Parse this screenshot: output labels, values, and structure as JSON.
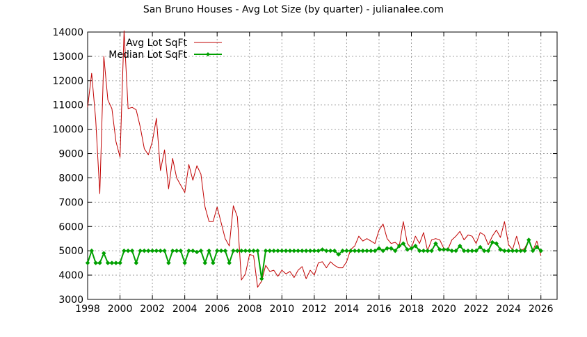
{
  "chart_data": {
    "type": "line",
    "title": "San Bruno Houses - Avg Lot Size (by quarter) - julianalee.com",
    "xlabel": "",
    "ylabel": "",
    "xlim": [
      1998,
      2027
    ],
    "ylim": [
      3000,
      14000
    ],
    "x_ticks": [
      1998,
      2000,
      2002,
      2004,
      2006,
      2008,
      2010,
      2012,
      2014,
      2016,
      2018,
      2020,
      2022,
      2024,
      2026
    ],
    "y_ticks": [
      3000,
      4000,
      5000,
      6000,
      7000,
      8000,
      9000,
      10000,
      11000,
      12000,
      13000,
      14000
    ],
    "grid": true,
    "legend_position": "top-left",
    "series": [
      {
        "name": "Avg Lot SqFt",
        "color": "#c00000",
        "marker": "none",
        "x": [
          1998.0,
          1998.25,
          1998.5,
          1998.75,
          1999.0,
          1999.25,
          1999.5,
          1999.75,
          2000.0,
          2000.25,
          2000.5,
          2000.75,
          2001.0,
          2001.25,
          2001.5,
          2001.75,
          2002.0,
          2002.25,
          2002.5,
          2002.75,
          2003.0,
          2003.25,
          2003.5,
          2003.75,
          2004.0,
          2004.25,
          2004.5,
          2004.75,
          2005.0,
          2005.25,
          2005.5,
          2005.75,
          2006.0,
          2006.25,
          2006.5,
          2006.75,
          2007.0,
          2007.25,
          2007.5,
          2007.75,
          2008.0,
          2008.25,
          2008.5,
          2008.75,
          2009.0,
          2009.25,
          2009.5,
          2009.75,
          2010.0,
          2010.25,
          2010.5,
          2010.75,
          2011.0,
          2011.25,
          2011.5,
          2011.75,
          2012.0,
          2012.25,
          2012.5,
          2012.75,
          2013.0,
          2013.25,
          2013.5,
          2013.75,
          2014.0,
          2014.25,
          2014.5,
          2014.75,
          2015.0,
          2015.25,
          2015.5,
          2015.75,
          2016.0,
          2016.25,
          2016.5,
          2016.75,
          2017.0,
          2017.25,
          2017.5,
          2017.75,
          2018.0,
          2018.25,
          2018.5,
          2018.75,
          2019.0,
          2019.25,
          2019.5,
          2019.75,
          2020.0,
          2020.25,
          2020.5,
          2020.75,
          2021.0,
          2021.25,
          2021.5,
          2021.75,
          2022.0,
          2022.25,
          2022.5,
          2022.75,
          2023.0,
          2023.25,
          2023.5,
          2023.75,
          2024.0,
          2024.25,
          2024.5,
          2024.75,
          2025.0,
          2025.25,
          2025.5,
          2025.75,
          2026.0
        ],
        "y": [
          10900,
          12300,
          10400,
          7350,
          13000,
          11200,
          10850,
          9500,
          8850,
          14050,
          10850,
          10900,
          10800,
          10100,
          9200,
          8950,
          9500,
          10450,
          8300,
          9150,
          7550,
          8800,
          8000,
          7700,
          7400,
          8550,
          7900,
          8500,
          8150,
          6800,
          6200,
          6200,
          6800,
          6150,
          5500,
          5200,
          6850,
          6400,
          3800,
          4050,
          4850,
          4800,
          3500,
          3750,
          4400,
          4150,
          4200,
          3950,
          4200,
          4050,
          4150,
          3900,
          4200,
          4350,
          3850,
          4200,
          4000,
          4500,
          4550,
          4300,
          4550,
          4400,
          4300,
          4300,
          4550,
          5050,
          5200,
          5600,
          5400,
          5500,
          5400,
          5300,
          5850,
          6100,
          5500,
          5300,
          5350,
          5200,
          6200,
          5300,
          5100,
          5600,
          5300,
          5750,
          5000,
          5450,
          5500,
          5450,
          5100,
          5050,
          5450,
          5600,
          5800,
          5450,
          5650,
          5600,
          5300,
          5750,
          5650,
          5250,
          5600,
          5850,
          5550,
          6200,
          5250,
          5050,
          5600,
          5000,
          5100,
          5450,
          5000,
          5400,
          4800
        ]
      },
      {
        "name": "Median Lot SqFt",
        "color": "#00a000",
        "marker": "diamond",
        "x": [
          1998.0,
          1998.25,
          1998.5,
          1998.75,
          1999.0,
          1999.25,
          1999.5,
          1999.75,
          2000.0,
          2000.25,
          2000.5,
          2000.75,
          2001.0,
          2001.25,
          2001.5,
          2001.75,
          2002.0,
          2002.25,
          2002.5,
          2002.75,
          2003.0,
          2003.25,
          2003.5,
          2003.75,
          2004.0,
          2004.25,
          2004.5,
          2004.75,
          2005.0,
          2005.25,
          2005.5,
          2005.75,
          2006.0,
          2006.25,
          2006.5,
          2006.75,
          2007.0,
          2007.25,
          2007.5,
          2007.75,
          2008.0,
          2008.25,
          2008.5,
          2008.75,
          2009.0,
          2009.25,
          2009.5,
          2009.75,
          2010.0,
          2010.25,
          2010.5,
          2010.75,
          2011.0,
          2011.25,
          2011.5,
          2011.75,
          2012.0,
          2012.25,
          2012.5,
          2012.75,
          2013.0,
          2013.25,
          2013.5,
          2013.75,
          2014.0,
          2014.25,
          2014.5,
          2014.75,
          2015.0,
          2015.25,
          2015.5,
          2015.75,
          2016.0,
          2016.25,
          2016.5,
          2016.75,
          2017.0,
          2017.25,
          2017.5,
          2017.75,
          2018.0,
          2018.25,
          2018.5,
          2018.75,
          2019.0,
          2019.25,
          2019.5,
          2019.75,
          2020.0,
          2020.25,
          2020.5,
          2020.75,
          2021.0,
          2021.25,
          2021.5,
          2021.75,
          2022.0,
          2022.25,
          2022.5,
          2022.75,
          2023.0,
          2023.25,
          2023.5,
          2023.75,
          2024.0,
          2024.25,
          2024.5,
          2024.75,
          2025.0,
          2025.25,
          2025.5,
          2025.75,
          2026.0
        ],
        "y": [
          4500,
          5000,
          4500,
          4500,
          4900,
          4500,
          4500,
          4500,
          4500,
          5000,
          5000,
          5000,
          4500,
          5000,
          5000,
          5000,
          5000,
          5000,
          5000,
          5000,
          4500,
          5000,
          5000,
          5000,
          4500,
          5000,
          5000,
          4950,
          5000,
          4500,
          5000,
          4500,
          5000,
          5000,
          5000,
          4500,
          5000,
          5000,
          5000,
          5000,
          5000,
          5000,
          5000,
          3850,
          5000,
          5000,
          5000,
          5000,
          5000,
          5000,
          5000,
          5000,
          5000,
          5000,
          5000,
          5000,
          5000,
          5000,
          5050,
          5000,
          5000,
          5000,
          4850,
          5000,
          5000,
          5000,
          5000,
          5000,
          5000,
          5000,
          5000,
          5000,
          5100,
          5000,
          5100,
          5100,
          5000,
          5200,
          5300,
          5050,
          5100,
          5200,
          5000,
          5000,
          5000,
          5000,
          5300,
          5050,
          5050,
          5050,
          5000,
          5000,
          5200,
          5000,
          5000,
          5000,
          5000,
          5150,
          5000,
          5000,
          5350,
          5300,
          5050,
          5000,
          5000,
          5000,
          5000,
          5000,
          5000,
          5450,
          5000,
          5150,
          5000
        ]
      }
    ]
  }
}
